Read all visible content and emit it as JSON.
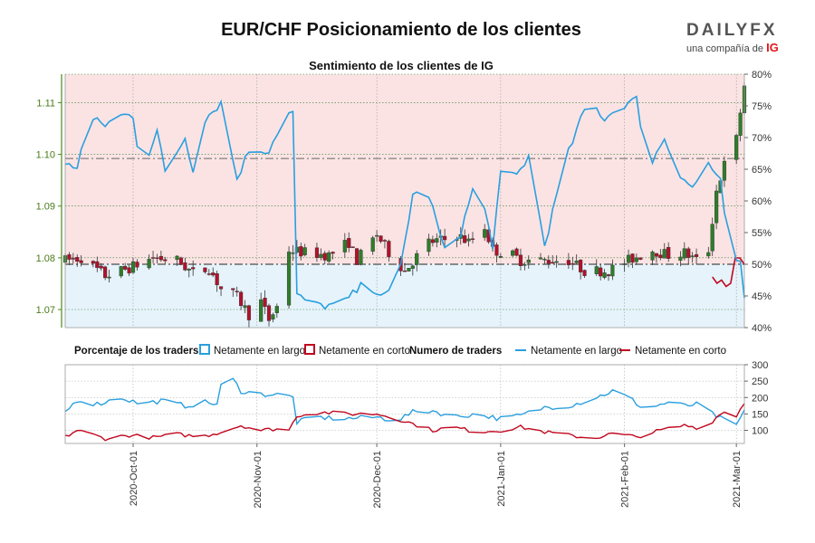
{
  "title": "EUR/CHF Posicionamiento de los clientes",
  "logo": {
    "brand": "DAILYFX",
    "tagline": "una compañía de",
    "tagline_brand": "IG"
  },
  "subtitle": "Sentimiento de los clientes de IG",
  "colors": {
    "long": "#2a9fdf",
    "short": "#c0081f",
    "long_fill": "#e6f3fb",
    "short_fill": "#fbe3e4",
    "candle_up": "#2f7d2a",
    "candle_down": "#b0122b",
    "axis_left": "#4a8a1c",
    "grid": "#2f7d2a"
  },
  "legend": {
    "pct_title": "Porcentaje de los traders",
    "pct_long": "Netamente en largo",
    "pct_short": "Netamente en corto",
    "num_title": "Numero de traders",
    "num_long": "Netamente en largo",
    "num_short": "Netamente en corto"
  },
  "chart_data": [
    {
      "type": "candlestick",
      "title": "Sentimiento de los clientes de IG",
      "x_range": [
        "2020-09-14",
        "2021-03-03"
      ],
      "y_left": {
        "label": "",
        "range": [
          1.0665,
          1.1155
        ],
        "ticks": [
          1.07,
          1.08,
          1.09,
          1.1,
          1.11
        ],
        "tick_labels": [
          "1.07",
          "1.08",
          "1.09",
          "1.10",
          "1.11"
        ]
      },
      "y_right": {
        "label": "",
        "range": [
          40,
          80
        ],
        "ticks": [
          40,
          45,
          50,
          55,
          60,
          65,
          70,
          75,
          80
        ],
        "tick_labels": [
          "40%",
          "45%",
          "50%",
          "55%",
          "60%",
          "65%",
          "70%",
          "75%",
          "80%"
        ]
      },
      "reference_lines": [
        50,
        66.7
      ],
      "price_close_anchors": [
        [
          "2020-09-14",
          1.0795
        ],
        [
          "2020-09-18",
          1.08
        ],
        [
          "2020-09-24",
          1.0765
        ],
        [
          "2020-09-30",
          1.078
        ],
        [
          "2020-10-06",
          1.08
        ],
        [
          "2020-10-12",
          1.0795
        ],
        [
          "2020-10-16",
          1.077
        ],
        [
          "2020-10-20",
          1.078
        ],
        [
          "2020-10-23",
          1.074
        ],
        [
          "2020-10-27",
          1.0725
        ],
        [
          "2020-10-30",
          1.069
        ],
        [
          "2020-11-02",
          1.0715
        ],
        [
          "2020-11-04",
          1.068
        ],
        [
          "2020-11-06",
          1.0705
        ],
        [
          "2020-11-09",
          1.0815
        ],
        [
          "2020-11-13",
          1.081
        ],
        [
          "2020-11-19",
          1.0805
        ],
        [
          "2020-11-24",
          1.083
        ],
        [
          "2020-11-26",
          1.0795
        ],
        [
          "2020-12-01",
          1.0845
        ],
        [
          "2020-12-04",
          1.081
        ],
        [
          "2020-12-08",
          1.0775
        ],
        [
          "2020-12-14",
          1.083
        ],
        [
          "2020-12-18",
          1.0835
        ],
        [
          "2020-12-21",
          1.0845
        ],
        [
          "2020-12-24",
          1.083
        ],
        [
          "2020-12-28",
          1.086
        ],
        [
          "2020-12-30",
          1.0815
        ],
        [
          "2021-01-04",
          1.0805
        ],
        [
          "2021-01-06",
          1.0795
        ],
        [
          "2021-01-11",
          1.0795
        ],
        [
          "2021-01-18",
          1.0795
        ],
        [
          "2021-01-22",
          1.0775
        ],
        [
          "2021-01-28",
          1.0775
        ],
        [
          "2021-02-02",
          1.0795
        ],
        [
          "2021-02-08",
          1.0815
        ],
        [
          "2021-02-12",
          1.0805
        ],
        [
          "2021-02-16",
          1.081
        ],
        [
          "2021-02-19",
          1.0795
        ],
        [
          "2021-02-22",
          1.0815
        ],
        [
          "2021-02-24",
          1.093
        ],
        [
          "2021-02-26",
          1.098
        ],
        [
          "2021-03-01",
          1.103
        ],
        [
          "2021-03-03",
          1.1135
        ]
      ],
      "pct_long_anchors": [
        [
          "2020-09-14",
          65.5
        ],
        [
          "2020-09-17",
          65.5
        ],
        [
          "2020-09-20",
          73
        ],
        [
          "2020-09-24",
          72
        ],
        [
          "2020-09-28",
          73.5
        ],
        [
          "2020-10-01",
          73.5
        ],
        [
          "2020-10-03",
          64.5
        ],
        [
          "2020-10-07",
          71
        ],
        [
          "2020-10-09",
          64.5
        ],
        [
          "2020-10-14",
          70
        ],
        [
          "2020-10-16",
          65
        ],
        [
          "2020-10-19",
          73
        ],
        [
          "2020-10-23",
          75.5
        ],
        [
          "2020-10-27",
          63.5
        ],
        [
          "2020-10-30",
          68
        ],
        [
          "2020-11-04",
          68
        ],
        [
          "2020-11-08",
          73.5
        ],
        [
          "2020-11-10",
          74
        ],
        [
          "2020-11-11",
          45
        ],
        [
          "2020-11-16",
          43.5
        ],
        [
          "2020-11-22",
          43.5
        ],
        [
          "2020-11-28",
          47
        ],
        [
          "2020-12-03",
          45
        ],
        [
          "2020-12-06",
          46
        ],
        [
          "2020-12-10",
          61
        ],
        [
          "2020-12-14",
          61
        ],
        [
          "2020-12-18",
          52
        ],
        [
          "2020-12-22",
          55
        ],
        [
          "2020-12-26",
          64
        ],
        [
          "2020-12-30",
          53
        ],
        [
          "2021-01-01",
          64
        ],
        [
          "2021-01-05",
          64
        ],
        [
          "2021-01-08",
          67
        ],
        [
          "2021-01-12",
          53
        ],
        [
          "2021-01-17",
          66
        ],
        [
          "2021-01-23",
          76
        ],
        [
          "2021-01-27",
          73
        ],
        [
          "2021-01-31",
          75
        ],
        [
          "2021-02-04",
          76
        ],
        [
          "2021-02-07",
          65
        ],
        [
          "2021-02-11",
          70
        ],
        [
          "2021-02-14",
          65
        ],
        [
          "2021-02-18",
          62
        ],
        [
          "2021-02-22",
          66
        ],
        [
          "2021-02-25",
          63
        ],
        [
          "2021-02-27",
          52
        ],
        [
          "2021-03-02",
          50
        ],
        [
          "2021-03-03",
          44
        ]
      ],
      "short_segment": {
        "from": "2021-02-23",
        "to": "2021-03-03",
        "values": [
          48,
          47,
          47.5,
          46.5,
          47,
          51,
          51,
          50
        ]
      }
    },
    {
      "type": "line",
      "y_right": {
        "label": "",
        "range": [
          60,
          300
        ],
        "ticks": [
          100,
          150,
          200,
          250,
          300
        ],
        "tick_labels": [
          "100",
          "150",
          "200",
          "250",
          "300"
        ]
      },
      "x_ticks": [
        "2020-10-01",
        "2020-11-01",
        "2020-12-01",
        "2021-01-01",
        "2021-02-01",
        "2021-03-01"
      ],
      "x_tick_labels": [
        "2020-Oct-01",
        "2020-Nov-01",
        "2020-Dec-01",
        "2021-Jan-01",
        "2021-Feb-01",
        "2021-Mar-01"
      ],
      "series": [
        {
          "name": "Netamente en largo",
          "anchors": [
            [
              "2020-09-14",
              155
            ],
            [
              "2020-09-17",
              193
            ],
            [
              "2020-09-22",
              180
            ],
            [
              "2020-09-28",
              200
            ],
            [
              "2020-10-03",
              180
            ],
            [
              "2020-10-08",
              190
            ],
            [
              "2020-10-14",
              175
            ],
            [
              "2020-10-19",
              185
            ],
            [
              "2020-10-22",
              180
            ],
            [
              "2020-10-24",
              290
            ],
            [
              "2020-10-28",
              220
            ],
            [
              "2020-11-02",
              210
            ],
            [
              "2020-11-08",
              208
            ],
            [
              "2020-11-10",
              200
            ],
            [
              "2020-11-11",
              125
            ],
            [
              "2020-11-16",
              140
            ],
            [
              "2020-11-22",
              135
            ],
            [
              "2020-12-01",
              140
            ],
            [
              "2020-12-06",
              130
            ],
            [
              "2020-12-10",
              155
            ],
            [
              "2020-12-15",
              160
            ],
            [
              "2020-12-20",
              140
            ],
            [
              "2020-12-26",
              150
            ],
            [
              "2021-01-01",
              135
            ],
            [
              "2021-01-06",
              145
            ],
            [
              "2021-01-12",
              170
            ],
            [
              "2021-01-18",
              175
            ],
            [
              "2021-01-24",
              195
            ],
            [
              "2021-01-29",
              220
            ],
            [
              "2021-02-02",
              200
            ],
            [
              "2021-02-06",
              165
            ],
            [
              "2021-02-12",
              185
            ],
            [
              "2021-02-16",
              175
            ],
            [
              "2021-02-20",
              180
            ],
            [
              "2021-02-23",
              150
            ],
            [
              "2021-02-26",
              130
            ],
            [
              "2021-03-01",
              115
            ],
            [
              "2021-03-03",
              160
            ]
          ]
        },
        {
          "name": "Netamente en corto",
          "anchors": [
            [
              "2020-09-14",
              80
            ],
            [
              "2020-09-17",
              100
            ],
            [
              "2020-09-20",
              90
            ],
            [
              "2020-09-24",
              75
            ],
            [
              "2020-09-30",
              85
            ],
            [
              "2020-10-06",
              78
            ],
            [
              "2020-10-12",
              88
            ],
            [
              "2020-10-18",
              80
            ],
            [
              "2020-10-23",
              95
            ],
            [
              "2020-10-28",
              115
            ],
            [
              "2020-11-02",
              100
            ],
            [
              "2020-11-06",
              105
            ],
            [
              "2020-11-09",
              100
            ],
            [
              "2020-11-11",
              145
            ],
            [
              "2020-11-17",
              155
            ],
            [
              "2020-11-24",
              150
            ],
            [
              "2020-12-01",
              150
            ],
            [
              "2020-12-05",
              140
            ],
            [
              "2020-12-10",
              120
            ],
            [
              "2020-12-15",
              100
            ],
            [
              "2020-12-20",
              110
            ],
            [
              "2020-12-26",
              95
            ],
            [
              "2021-01-01",
              100
            ],
            [
              "2021-01-06",
              110
            ],
            [
              "2021-01-12",
              95
            ],
            [
              "2021-01-18",
              85
            ],
            [
              "2021-01-24",
              75
            ],
            [
              "2021-01-29",
              90
            ],
            [
              "2021-02-04",
              80
            ],
            [
              "2021-02-10",
              100
            ],
            [
              "2021-02-16",
              115
            ],
            [
              "2021-02-21",
              105
            ],
            [
              "2021-02-24",
              140
            ],
            [
              "2021-02-27",
              165
            ],
            [
              "2021-03-01",
              145
            ],
            [
              "2021-03-03",
              185
            ]
          ]
        }
      ]
    }
  ]
}
